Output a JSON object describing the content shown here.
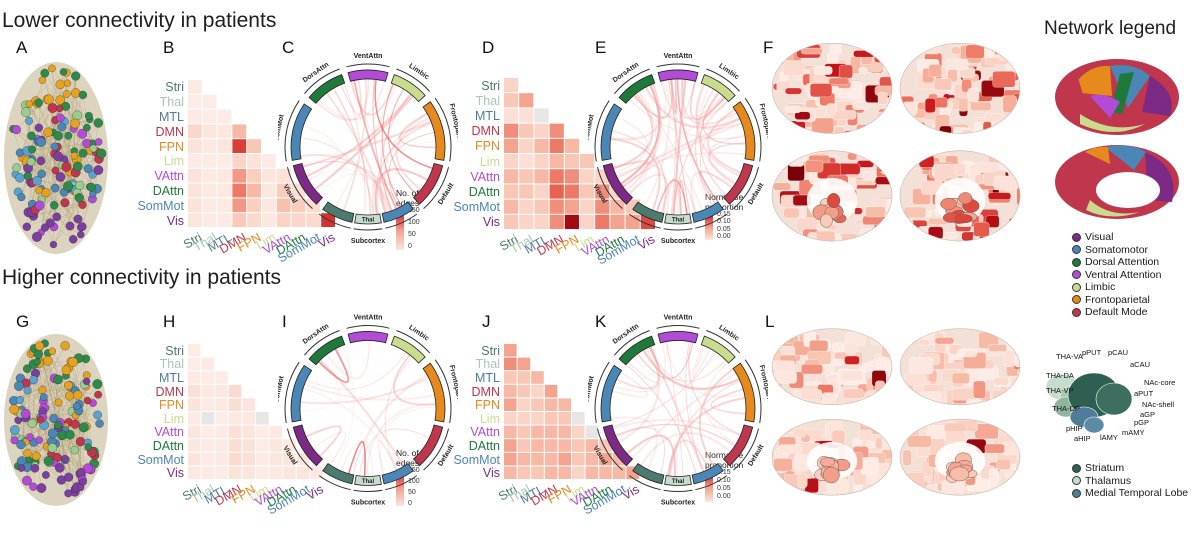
{
  "headings": {
    "top": "Lower connectivity in patients",
    "bottom": "Higher connectivity in patients",
    "network_legend": "Network legend"
  },
  "panels": [
    "A",
    "B",
    "C",
    "D",
    "E",
    "F",
    "G",
    "H",
    "I",
    "J",
    "K",
    "L"
  ],
  "matrix_labels": [
    "Stri",
    "Thal",
    "MTL",
    "DMN",
    "FPN",
    "Lim",
    "VAttn",
    "DAttn",
    "SomMot",
    "Vis"
  ],
  "label_colors": [
    "#4d7a6e",
    "#aac6b4",
    "#4f7d99",
    "#c0364d",
    "#e68a1e",
    "#c9db8d",
    "#b24bd6",
    "#1e7a3a",
    "#4a86b6",
    "#7c2a86"
  ],
  "legend_edges": {
    "title": "No. of\nedges",
    "ticks": [
      "150",
      "100",
      "50",
      "0"
    ]
  },
  "legend_prop": {
    "title": "Normalise\nproportion",
    "ticks": [
      "0.15",
      "0.10",
      "0.05",
      "0.00"
    ]
  },
  "chord_labels": {
    "top": "VentAttn",
    "dorsal": "DorsAttn",
    "limbic": "Limbic",
    "fronto": "Frontoparietal",
    "somato": "SomMot",
    "default": "Default",
    "visual": "Visual",
    "subcortex": "Subcortex",
    "thal": "Thal"
  },
  "networks": [
    {
      "name": "Visual",
      "color": "#7c2a86"
    },
    {
      "name": "Somatomotor",
      "color": "#4a86b6"
    },
    {
      "name": "Dorsal Attention",
      "color": "#1e7a3a"
    },
    {
      "name": "Ventral Attention",
      "color": "#b24bd6"
    },
    {
      "name": "Limbic",
      "color": "#c9db8d"
    },
    {
      "name": "Frontoparietal",
      "color": "#e68a1e"
    },
    {
      "name": "Default Mode",
      "color": "#c0364d"
    }
  ],
  "subcortex_legend": [
    {
      "name": "Striatum",
      "color": "#2f5e52"
    },
    {
      "name": "Thalamus",
      "color": "#c6dccd"
    },
    {
      "name": "Medial Temporal Lobe",
      "color": "#4f7d99"
    }
  ],
  "subcortex_labels": [
    "THA-VA",
    "pPUT",
    "pCAU",
    "aCAU",
    "THA-DA",
    "NAc-core",
    "aPUT",
    "THA-VP",
    "NAc-shell",
    "aGP",
    "pGP",
    "THA-DP",
    "mAMY",
    "pHIP",
    "aHIP",
    "lAMY"
  ],
  "matrices": {
    "B": [
      [
        2
      ],
      [
        1,
        1
      ],
      [
        2,
        1,
        1
      ],
      [
        18,
        5,
        4,
        40
      ],
      [
        8,
        3,
        6,
        95,
        30
      ],
      [
        2,
        1,
        1,
        20,
        8,
        2
      ],
      [
        9,
        3,
        4,
        55,
        24,
        6,
        9
      ],
      [
        7,
        3,
        3,
        70,
        40,
        5,
        26,
        12
      ],
      [
        8,
        2,
        3,
        55,
        24,
        4,
        35,
        26,
        14
      ],
      [
        6,
        2,
        2,
        28,
        16,
        4,
        20,
        18,
        16,
        100
      ]
    ],
    "D": [
      [
        0.02
      ],
      [
        0.03,
        0.05
      ],
      [
        0.01,
        0.01,
        0.0
      ],
      [
        0.06,
        0.03,
        0.02,
        0.06
      ],
      [
        0.05,
        0.02,
        0.04,
        0.07,
        0.04
      ],
      [
        0.02,
        0.01,
        0.02,
        0.04,
        0.03,
        0.03
      ],
      [
        0.04,
        0.03,
        0.04,
        0.07,
        0.06,
        0.02,
        0.02
      ],
      [
        0.03,
        0.03,
        0.02,
        0.08,
        0.07,
        0.03,
        0.06,
        0.02
      ],
      [
        0.04,
        0.02,
        0.03,
        0.06,
        0.05,
        0.02,
        0.06,
        0.04,
        0.03
      ],
      [
        0.03,
        0.02,
        0.02,
        0.06,
        0.13,
        0.02,
        0.07,
        0.05,
        0.05,
        0.09
      ]
    ],
    "H": [
      [
        1
      ],
      [
        1,
        2
      ],
      [
        2,
        1,
        1
      ],
      [
        10,
        3,
        4,
        15
      ],
      [
        8,
        2,
        3,
        12,
        6
      ],
      [
        2,
        0,
        1,
        3,
        3,
        0
      ],
      [
        6,
        1,
        2,
        10,
        6,
        1,
        3
      ],
      [
        5,
        2,
        2,
        12,
        8,
        1,
        5,
        3
      ],
      [
        7,
        2,
        3,
        15,
        10,
        2,
        6,
        6,
        4
      ],
      [
        4,
        2,
        2,
        8,
        6,
        2,
        4,
        5,
        6,
        3
      ]
    ],
    "J": [
      [
        0.05
      ],
      [
        0.06,
        0.05
      ],
      [
        0.03,
        0.03,
        0.04
      ],
      [
        0.04,
        0.03,
        0.02,
        0.05
      ],
      [
        0.05,
        0.02,
        0.03,
        0.04,
        0.04
      ],
      [
        0.02,
        0.02,
        0.02,
        0.03,
        0.03,
        0.0
      ],
      [
        0.04,
        0.03,
        0.04,
        0.04,
        0.04,
        0.02,
        0.0
      ],
      [
        0.05,
        0.03,
        0.04,
        0.04,
        0.04,
        0.03,
        0.04,
        0.03
      ],
      [
        0.05,
        0.04,
        0.04,
        0.04,
        0.05,
        0.03,
        0.04,
        0.05,
        0.04
      ],
      [
        0.04,
        0.03,
        0.03,
        0.04,
        0.04,
        0.02,
        0.04,
        0.04,
        0.04,
        0.05
      ]
    ]
  }
}
